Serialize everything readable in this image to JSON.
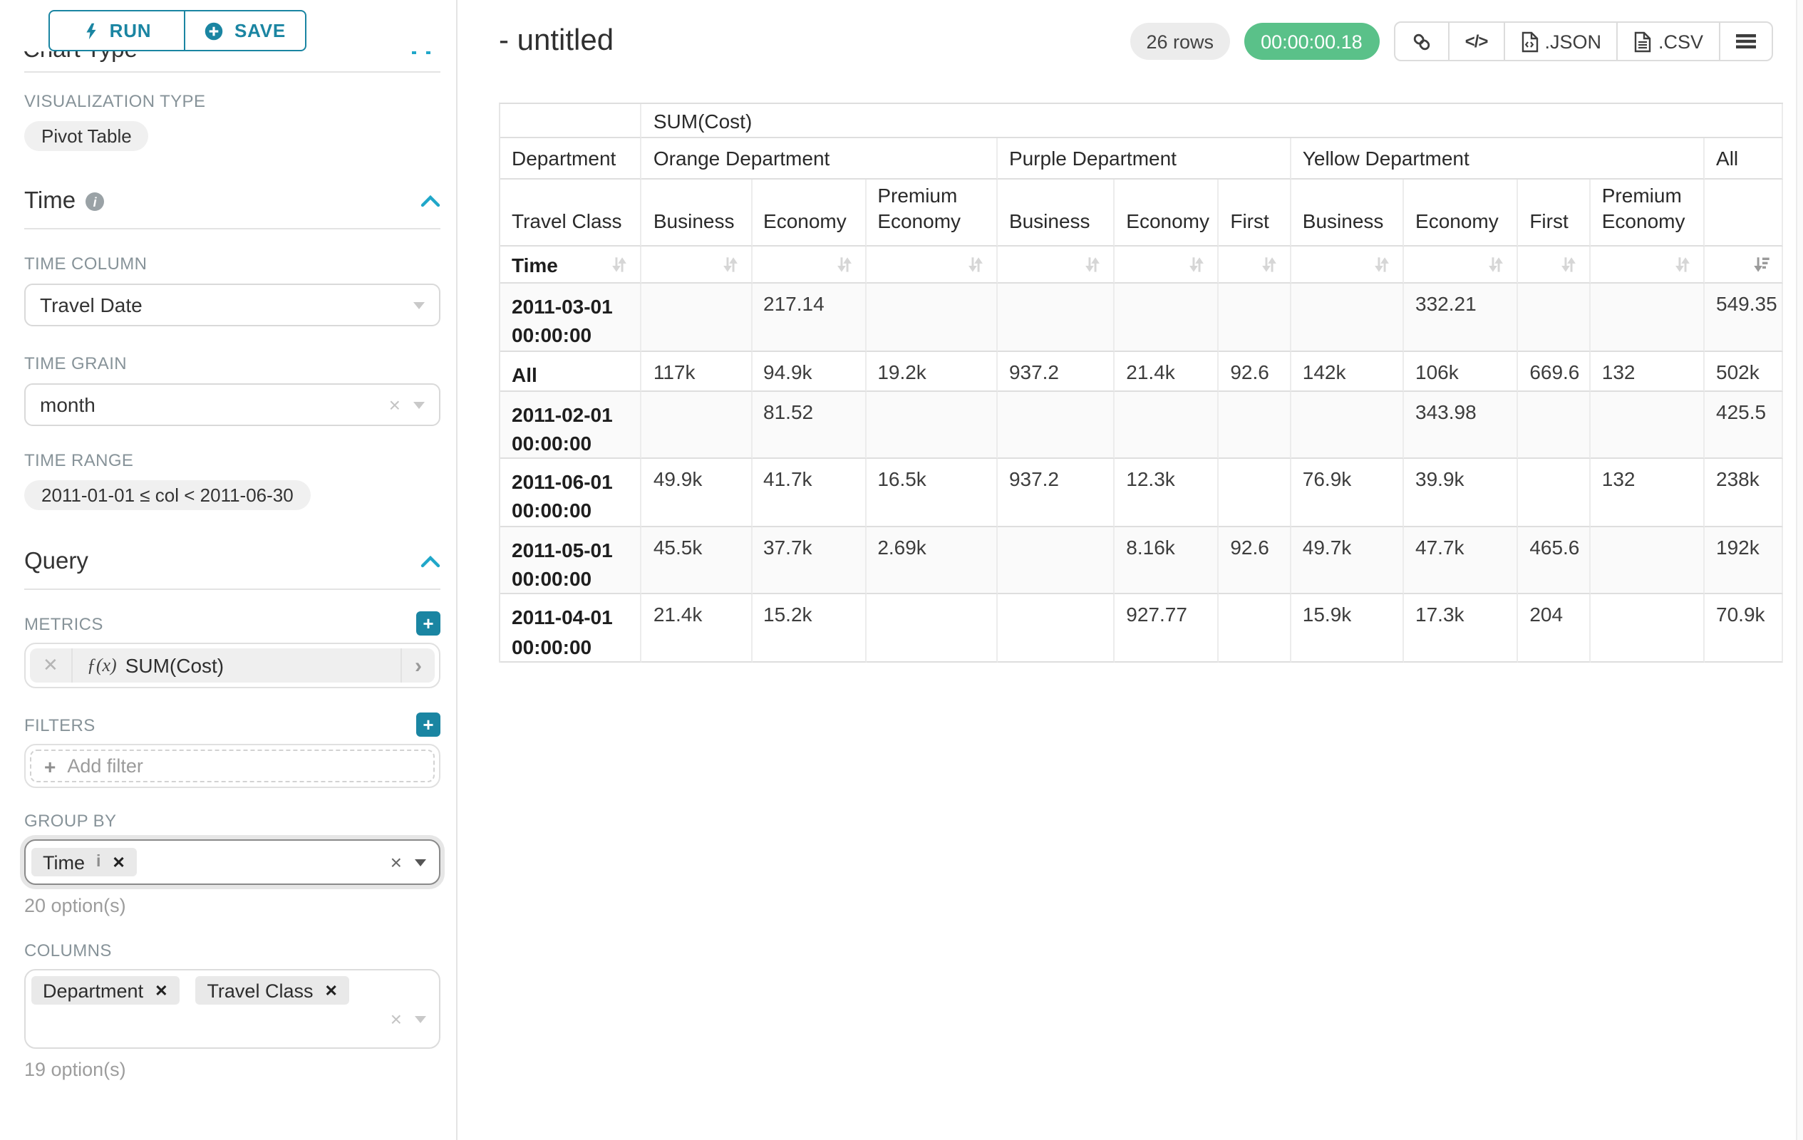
{
  "sidebar": {
    "run_button": "RUN",
    "save_button": "SAVE",
    "chart_type_heading": "Chart Type",
    "visualization": {
      "label": "VISUALIZATION TYPE",
      "value": "Pivot Table"
    },
    "time": {
      "title": "Time",
      "time_column": {
        "label": "TIME COLUMN",
        "value": "Travel Date"
      },
      "time_grain": {
        "label": "TIME GRAIN",
        "value": "month"
      },
      "time_range": {
        "label": "TIME RANGE",
        "value": "2011-01-01 ≤ col < 2011-06-30"
      }
    },
    "query": {
      "title": "Query",
      "metrics": {
        "label": "METRICS",
        "fx": "ƒ(x)",
        "value": "SUM(Cost)"
      },
      "filters": {
        "label": "FILTERS",
        "placeholder": "Add filter"
      },
      "group_by": {
        "label": "GROUP BY",
        "chips": [
          "Time"
        ],
        "options_hint": "20 option(s)"
      },
      "columns": {
        "label": "COLUMNS",
        "chips": [
          "Department",
          "Travel Class"
        ],
        "options_hint": "19 option(s)"
      }
    }
  },
  "header": {
    "title": "- untitled",
    "row_count": "26 rows",
    "timer": "00:00:00.18",
    "export_json": ".JSON",
    "export_csv": ".CSV"
  },
  "colors": {
    "teal": "#1A85A2",
    "blue": "#20A7C9",
    "green": "#5AC189"
  },
  "chart_data": {
    "type": "table",
    "metric_header": "SUM(Cost)",
    "row_dimensions": [
      "Department",
      "Travel Class",
      "Time"
    ],
    "column_groups": [
      {
        "label": "Orange Department",
        "columns": [
          "Business",
          "Economy",
          "Premium Economy"
        ]
      },
      {
        "label": "Purple Department",
        "columns": [
          "Business",
          "Economy",
          "First"
        ]
      },
      {
        "label": "Yellow Department",
        "columns": [
          "Business",
          "Economy",
          "First",
          "Premium Economy"
        ]
      },
      {
        "label": "All",
        "columns": [
          ""
        ]
      }
    ],
    "rows": [
      {
        "label": "2011-03-01 00:00:00",
        "values": [
          "",
          "217.14",
          "",
          "",
          "",
          "",
          "",
          "332.21",
          "",
          "",
          "549.35"
        ]
      },
      {
        "label": "All",
        "values": [
          "117k",
          "94.9k",
          "19.2k",
          "937.2",
          "21.4k",
          "92.6",
          "142k",
          "106k",
          "669.6",
          "132",
          "502k"
        ]
      },
      {
        "label": "2011-02-01 00:00:00",
        "values": [
          "",
          "81.52",
          "",
          "",
          "",
          "",
          "",
          "343.98",
          "",
          "",
          "425.5"
        ]
      },
      {
        "label": "2011-06-01 00:00:00",
        "values": [
          "49.9k",
          "41.7k",
          "16.5k",
          "937.2",
          "12.3k",
          "",
          "76.9k",
          "39.9k",
          "",
          "132",
          "238k"
        ]
      },
      {
        "label": "2011-05-01 00:00:00",
        "values": [
          "45.5k",
          "37.7k",
          "2.69k",
          "",
          "8.16k",
          "92.6",
          "49.7k",
          "47.7k",
          "465.6",
          "",
          "192k"
        ]
      },
      {
        "label": "2011-04-01 00:00:00",
        "values": [
          "21.4k",
          "15.2k",
          "",
          "",
          "927.77",
          "",
          "15.9k",
          "17.3k",
          "204",
          "",
          "70.9k"
        ]
      }
    ],
    "sort": {
      "column": "All",
      "direction": "desc"
    }
  }
}
